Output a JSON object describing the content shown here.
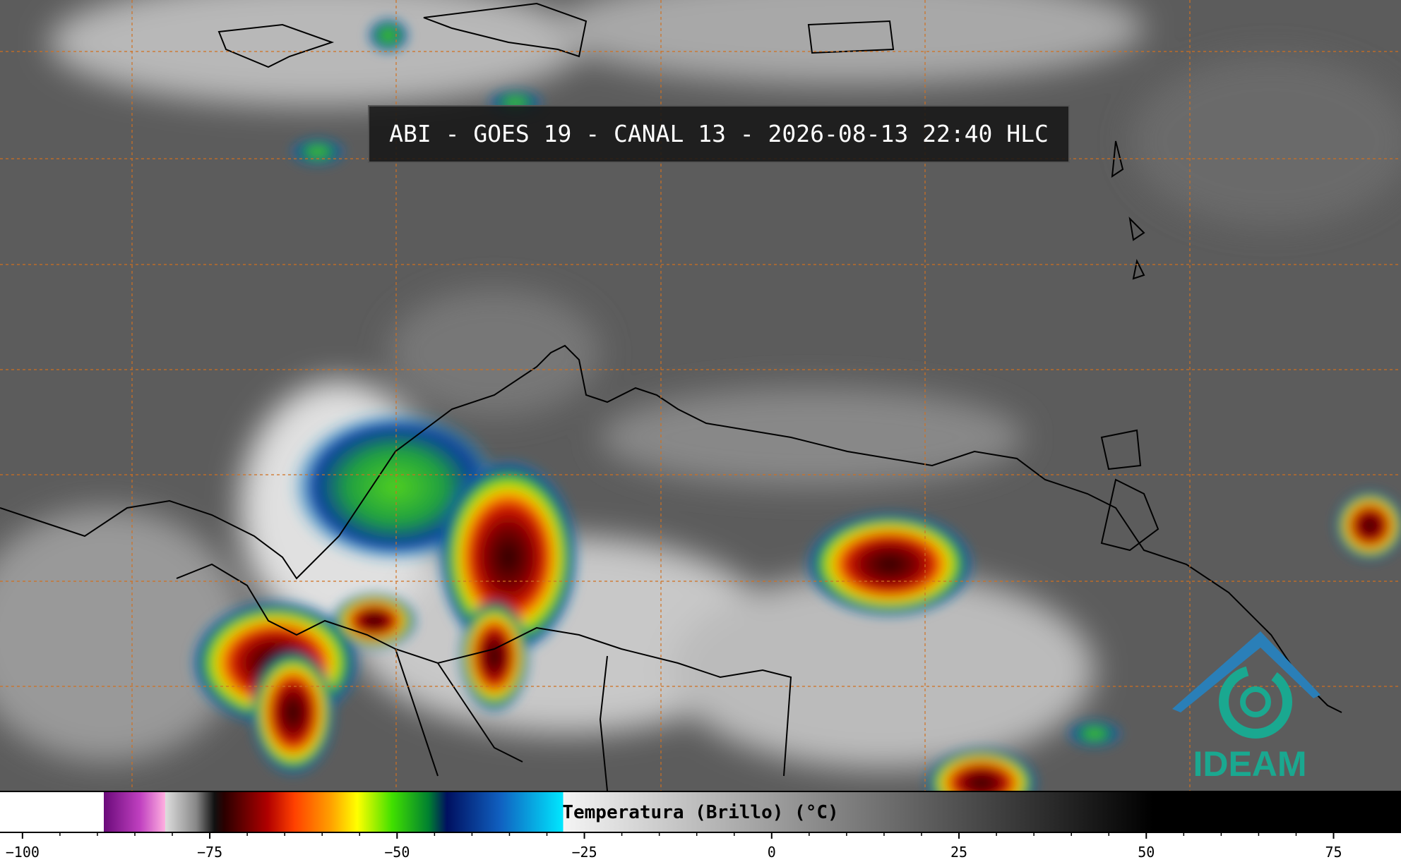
{
  "title": "ABI - GOES 19 - CANAL 13 - 2026-08-13 22:40 HLC",
  "colorbar": {
    "label": "Temperatura (Brillo) (°C)",
    "lim": [
      -103,
      84
    ],
    "ticks": [
      {
        "value": -100,
        "label": "−100"
      },
      {
        "value": -75,
        "label": "−75"
      },
      {
        "value": -50,
        "label": "−50"
      },
      {
        "value": -25,
        "label": "−25"
      },
      0,
      25,
      50,
      75
    ]
  },
  "logo": "IDEAM"
}
